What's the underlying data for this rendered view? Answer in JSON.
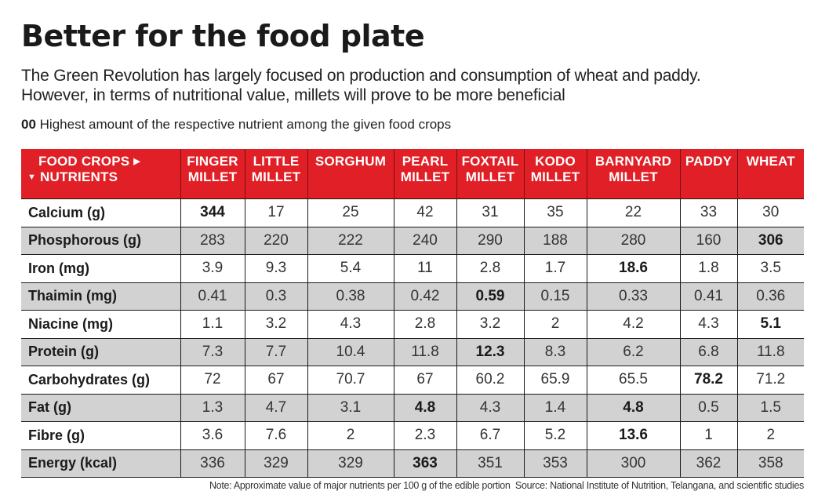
{
  "header": {
    "title": "Better for the food plate",
    "subtitle_line1": "The Green Revolution has largely focused on production and consumption of wheat and paddy.",
    "subtitle_line2": "However, in terms of nutritional value, millets will prove to be more beneficial",
    "legend_marker": "00",
    "legend_text": "Highest amount of the respective nutrient among the given food crops"
  },
  "table": {
    "corner_line1": "FOOD CROPS",
    "corner_line2": "NUTRIENTS",
    "corner_icon_right": "triangle-right-icon",
    "corner_icon_down": "triangle-down-icon",
    "header_color": "#e01f26",
    "alt_row_color": "#d2d2d2"
  },
  "chart_data": {
    "type": "table",
    "title": "Better for the food plate",
    "columns": [
      {
        "line1": "FINGER",
        "line2": "MILLET"
      },
      {
        "line1": "LITTLE",
        "line2": "MILLET"
      },
      {
        "line1": "SORGHUM",
        "line2": ""
      },
      {
        "line1": "PEARL",
        "line2": "MILLET"
      },
      {
        "line1": "FOXTAIL",
        "line2": "MILLET"
      },
      {
        "line1": "KODO",
        "line2": "MILLET"
      },
      {
        "line1": "BARNYARD",
        "line2": "MILLET"
      },
      {
        "line1": "PADDY",
        "line2": ""
      },
      {
        "line1": "WHEAT",
        "line2": ""
      }
    ],
    "rows": [
      {
        "nutrient": "Calcium (g)",
        "values": [
          "344",
          "17",
          "25",
          "42",
          "31",
          "35",
          "22",
          "33",
          "30"
        ],
        "highest": [
          0
        ]
      },
      {
        "nutrient": "Phosphorous (g)",
        "values": [
          "283",
          "220",
          "222",
          "240",
          "290",
          "188",
          "280",
          "160",
          "306"
        ],
        "highest": [
          8
        ]
      },
      {
        "nutrient": "Iron (mg)",
        "values": [
          "3.9",
          "9.3",
          "5.4",
          "11",
          "2.8",
          "1.7",
          "18.6",
          "1.8",
          "3.5"
        ],
        "highest": [
          6
        ]
      },
      {
        "nutrient": "Thaimin (mg)",
        "values": [
          "0.41",
          "0.3",
          "0.38",
          "0.42",
          "0.59",
          "0.15",
          "0.33",
          "0.41",
          "0.36"
        ],
        "highest": [
          4
        ]
      },
      {
        "nutrient": "Niacine (mg)",
        "values": [
          "1.1",
          "3.2",
          "4.3",
          "2.8",
          "3.2",
          "2",
          "4.2",
          "4.3",
          "5.1"
        ],
        "highest": [
          8
        ]
      },
      {
        "nutrient": "Protein (g)",
        "values": [
          "7.3",
          "7.7",
          "10.4",
          "11.8",
          "12.3",
          "8.3",
          "6.2",
          "6.8",
          "11.8"
        ],
        "highest": [
          4
        ]
      },
      {
        "nutrient": "Carbohydrates (g)",
        "values": [
          "72",
          "67",
          "70.7",
          "67",
          "60.2",
          "65.9",
          "65.5",
          "78.2",
          "71.2"
        ],
        "highest": [
          7
        ]
      },
      {
        "nutrient": "Fat (g)",
        "values": [
          "1.3",
          "4.7",
          "3.1",
          "4.8",
          "4.3",
          "1.4",
          "4.8",
          "0.5",
          "1.5"
        ],
        "highest": [
          3,
          6
        ]
      },
      {
        "nutrient": "Fibre (g)",
        "values": [
          "3.6",
          "7.6",
          "2",
          "2.3",
          "6.7",
          "5.2",
          "13.6",
          "1",
          "2"
        ],
        "highest": [
          6
        ]
      },
      {
        "nutrient": "Energy (kcal)",
        "values": [
          "336",
          "329",
          "329",
          "363",
          "351",
          "353",
          "300",
          "362",
          "358"
        ],
        "highest": [
          3
        ]
      }
    ]
  },
  "footer": {
    "note": "Note: Approximate value of major nutrients per 100 g of the edible portion",
    "source": "Source: National Institute of Nutrition, Telangana, and scientific studies"
  }
}
